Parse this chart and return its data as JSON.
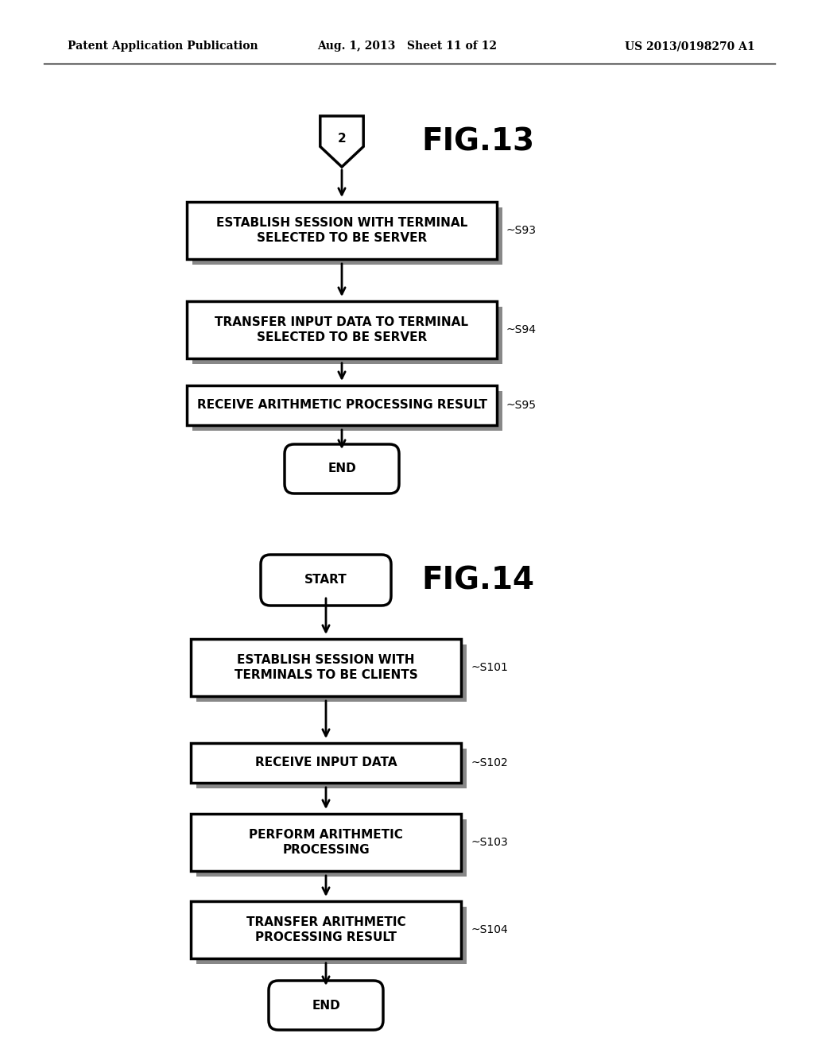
{
  "bg_color": "#ffffff",
  "header_left": "Patent Application Publication",
  "header_mid": "Aug. 1, 2013   Sheet 11 of 12",
  "header_right": "US 2013/0198270 A1",
  "fig13": {
    "title": "FIG.13",
    "connector_label": "2",
    "steps": [
      {
        "label": "ESTABLISH SESSION WITH TERMINAL\nSELECTED TO BE SERVER",
        "step": "~S93"
      },
      {
        "label": "TRANSFER INPUT DATA TO TERMINAL\nSELECTED TO BE SERVER",
        "step": "~S94"
      },
      {
        "label": "RECEIVE ARITHMETIC PROCESSING RESULT",
        "step": "~S95"
      }
    ],
    "end_label": "END"
  },
  "fig14": {
    "title": "FIG.14",
    "start_label": "START",
    "steps": [
      {
        "label": "ESTABLISH SESSION WITH\nTERMINALS TO BE CLIENTS",
        "step": "~S101"
      },
      {
        "label": "RECEIVE INPUT DATA",
        "step": "~S102"
      },
      {
        "label": "PERFORM ARITHMETIC\nPROCESSING",
        "step": "~S103"
      },
      {
        "label": "TRANSFER ARITHMETIC\nPROCESSING RESULT",
        "step": "~S104"
      }
    ],
    "end_label": "END"
  }
}
